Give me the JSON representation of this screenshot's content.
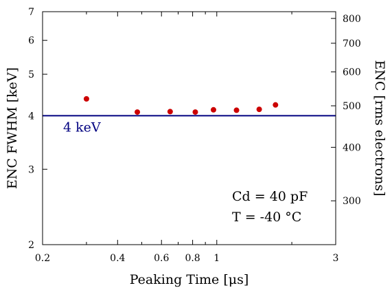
{
  "chart_data": {
    "type": "scatter",
    "xlabel": "Peaking Time [μs]",
    "ylabel_left": "ENC FWHM [keV]",
    "ylabel_right": "ENC [rms electrons]",
    "x_scale": "log",
    "y_scale": "log",
    "xlim": [
      0.2,
      3
    ],
    "ylim_left": [
      2,
      7
    ],
    "x_ticks": [
      {
        "value": 0.2,
        "label": "0.2"
      },
      {
        "value": 0.4,
        "label": "0.4"
      },
      {
        "value": 0.6,
        "label": "0.6"
      },
      {
        "value": 0.8,
        "label": "0.8"
      },
      {
        "value": 1,
        "label": "1"
      },
      {
        "value": 3,
        "label": "3"
      }
    ],
    "x_minor_ticks": [
      0.3,
      0.5,
      0.7,
      0.9,
      2
    ],
    "y_left_ticks": [
      {
        "value": 2,
        "label": "2"
      },
      {
        "value": 3,
        "label": "3"
      },
      {
        "value": 4,
        "label": "4"
      },
      {
        "value": 5,
        "label": "5"
      },
      {
        "value": 6,
        "label": "6"
      },
      {
        "value": 7,
        "label": "7"
      }
    ],
    "y_right_ticks": [
      {
        "value": 300,
        "label": "300"
      },
      {
        "value": 400,
        "label": "400"
      },
      {
        "value": 500,
        "label": "500"
      },
      {
        "value": 600,
        "label": "600"
      },
      {
        "value": 700,
        "label": "700"
      },
      {
        "value": 800,
        "label": "800"
      }
    ],
    "y_right_per_keV": 118.5,
    "series": [
      {
        "color": "#cc0000",
        "points": [
          {
            "x": 0.3,
            "y": 4.38
          },
          {
            "x": 0.48,
            "y": 4.08
          },
          {
            "x": 0.65,
            "y": 4.09
          },
          {
            "x": 0.82,
            "y": 4.08
          },
          {
            "x": 0.97,
            "y": 4.13
          },
          {
            "x": 1.2,
            "y": 4.12
          },
          {
            "x": 1.48,
            "y": 4.14
          },
          {
            "x": 1.72,
            "y": 4.24
          }
        ]
      }
    ],
    "reference_line": {
      "y": 4,
      "label": "4 keV",
      "color": "#000080"
    },
    "annotations": [
      "Cd = 40 pF",
      "T = -40 °C"
    ],
    "grid": false
  }
}
